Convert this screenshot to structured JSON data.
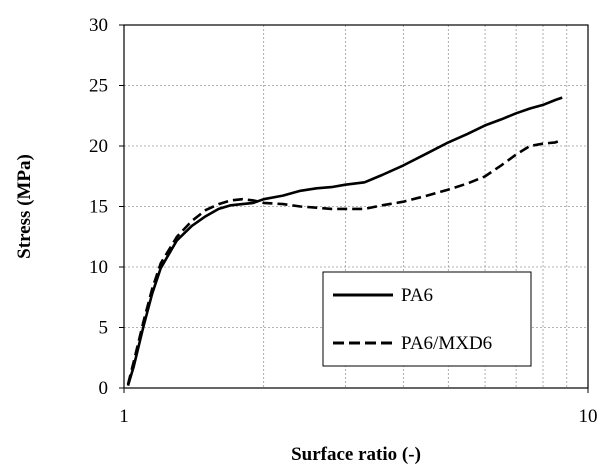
{
  "chart_data": {
    "type": "line",
    "xscale": "log",
    "xlim": [
      1,
      10
    ],
    "ylim": [
      0,
      30
    ],
    "x_ticks": [
      1,
      10
    ],
    "x_tick_labels": [
      "1",
      "10"
    ],
    "x_minor_gridlines": [
      2,
      3,
      4,
      5,
      6,
      7,
      8,
      9
    ],
    "y_ticks": [
      0,
      5,
      10,
      15,
      20,
      25,
      30
    ],
    "y_tick_labels": [
      "0",
      "5",
      "10",
      "15",
      "20",
      "25",
      "30"
    ],
    "grid": "on (dashed)",
    "xlabel": "Surface ratio (-)",
    "ylabel": "Stress (MPa)",
    "legend_position": "lower-right",
    "series": [
      {
        "name": "PA6",
        "line_style": "solid",
        "color": "#000000",
        "x": [
          1.02,
          1.05,
          1.1,
          1.15,
          1.2,
          1.3,
          1.4,
          1.5,
          1.6,
          1.7,
          1.8,
          1.9,
          2.0,
          2.2,
          2.4,
          2.6,
          2.8,
          3.0,
          3.3,
          3.6,
          4.0,
          4.5,
          5.0,
          5.5,
          6.0,
          6.5,
          7.0,
          7.5,
          8.0,
          8.5,
          8.8
        ],
        "y": [
          0.2,
          1.8,
          5.0,
          7.8,
          9.9,
          12.2,
          13.4,
          14.2,
          14.8,
          15.1,
          15.2,
          15.3,
          15.6,
          15.9,
          16.3,
          16.5,
          16.6,
          16.8,
          17.0,
          17.6,
          18.4,
          19.4,
          20.3,
          21.0,
          21.7,
          22.2,
          22.7,
          23.1,
          23.4,
          23.8,
          24.0
        ]
      },
      {
        "name": "PA6/MXD6",
        "line_style": "dashed",
        "color": "#000000",
        "x": [
          1.02,
          1.05,
          1.1,
          1.15,
          1.2,
          1.3,
          1.4,
          1.5,
          1.6,
          1.7,
          1.8,
          1.9,
          2.0,
          2.2,
          2.4,
          2.6,
          2.8,
          3.0,
          3.3,
          3.6,
          4.0,
          4.5,
          5.0,
          5.5,
          6.0,
          6.5,
          7.0,
          7.5,
          8.0,
          8.5,
          8.8
        ],
        "y": [
          0.3,
          2.2,
          5.4,
          8.2,
          10.3,
          12.5,
          13.8,
          14.7,
          15.2,
          15.5,
          15.6,
          15.5,
          15.3,
          15.2,
          15.0,
          14.9,
          14.8,
          14.8,
          14.8,
          15.1,
          15.4,
          15.9,
          16.4,
          16.9,
          17.5,
          18.4,
          19.3,
          20.0,
          20.2,
          20.3,
          20.5
        ]
      }
    ]
  }
}
